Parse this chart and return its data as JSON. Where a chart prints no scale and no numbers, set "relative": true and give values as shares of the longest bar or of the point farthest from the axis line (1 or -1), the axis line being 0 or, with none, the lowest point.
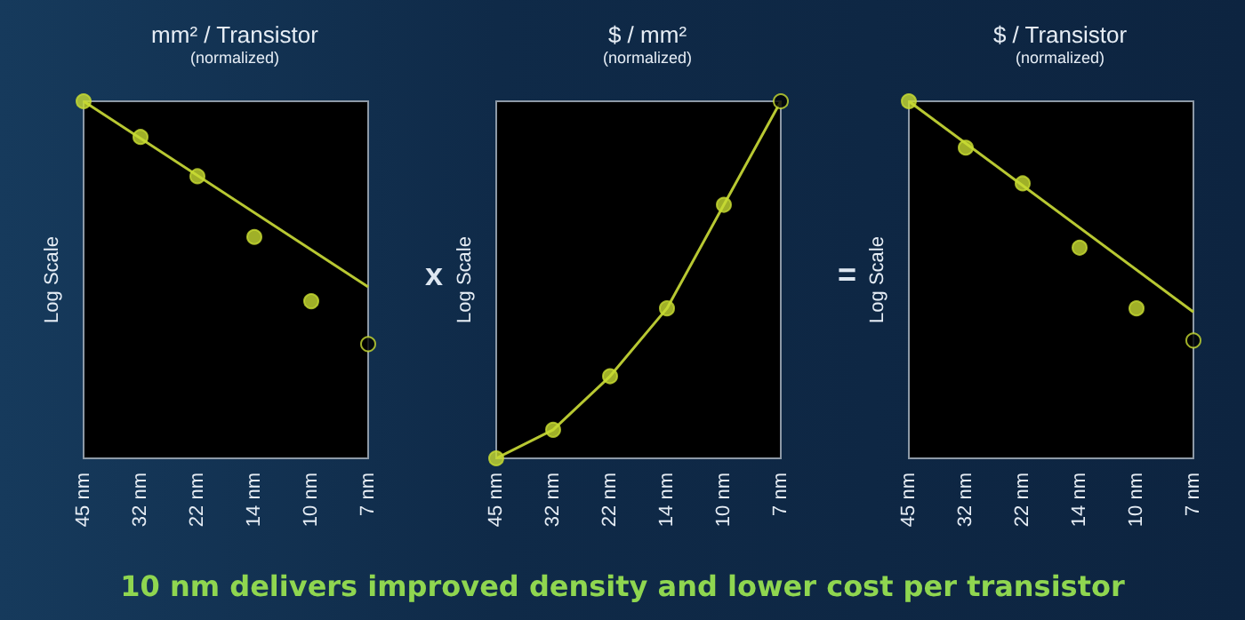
{
  "chart_data": [
    {
      "type": "scatter",
      "title": "mm² / Transistor",
      "subtitle": "(normalized)",
      "ylabel": "Log Scale",
      "relative": true,
      "grid": false,
      "categories": [
        "45 nm",
        "32 nm",
        "22 nm",
        "14 nm",
        "10 nm",
        "7 nm"
      ],
      "series": [
        {
          "type": "line",
          "color": "#b8c832",
          "marker": "none",
          "line_style": "solid",
          "x": [
            "45 nm",
            "7 nm"
          ],
          "values": [
            1.0,
            0.48
          ]
        },
        {
          "color": "#c8dc32",
          "marker": "circle",
          "values": [
            1.0,
            0.9,
            0.79,
            0.62,
            0.44,
            0.32
          ],
          "colors": [
            "#c8dc32",
            "#c8dc32",
            "#c8dc32",
            "#c8dc32",
            "#c8dc32",
            "#000000"
          ]
        }
      ]
    },
    {
      "type": "scatter",
      "title": "$ / mm²",
      "subtitle": "(normalized)",
      "ylabel": "Log Scale",
      "relative": true,
      "grid": false,
      "annotations": [
        "x",
        "10 nm delivers improved density and lower cost per transistor"
      ],
      "categories": [
        "45 nm",
        "32 nm",
        "22 nm",
        "14 nm",
        "10 nm",
        "7 nm"
      ],
      "series": [
        {
          "type": "line",
          "color": "#b8c832",
          "marker": "none",
          "line_style": "solid",
          "values": [
            0,
            0.08,
            0.23,
            0.42,
            0.71,
            1.0
          ]
        },
        {
          "color": "#c8dc32",
          "marker": "circle",
          "values": [
            0,
            0.08,
            0.23,
            0.42,
            0.71,
            1.0
          ],
          "colors": [
            "#c8dc32",
            "#c8dc32",
            "#c8dc32",
            "#c8dc32",
            "#c8dc32",
            "#000000"
          ]
        }
      ]
    },
    {
      "type": "scatter",
      "title": "$ / Transistor",
      "subtitle": "(normalized)",
      "ylabel": "Log Scale",
      "relative": true,
      "grid": false,
      "annotations": [
        "="
      ],
      "categories": [
        "45 nm",
        "32 nm",
        "22 nm",
        "14 nm",
        "10 nm",
        "7 nm"
      ],
      "series": [
        {
          "type": "line",
          "color": "#b8c832",
          "marker": "none",
          "line_style": "solid",
          "x": [
            "45 nm",
            "7 nm"
          ],
          "values": [
            1.0,
            0.41
          ]
        },
        {
          "color": "#c8dc32",
          "marker": "circle",
          "values": [
            1.0,
            0.87,
            0.77,
            0.59,
            0.42,
            0.33
          ],
          "colors": [
            "#c8dc32",
            "#c8dc32",
            "#c8dc32",
            "#c8dc32",
            "#c8dc32",
            "#000000"
          ]
        }
      ]
    }
  ]
}
